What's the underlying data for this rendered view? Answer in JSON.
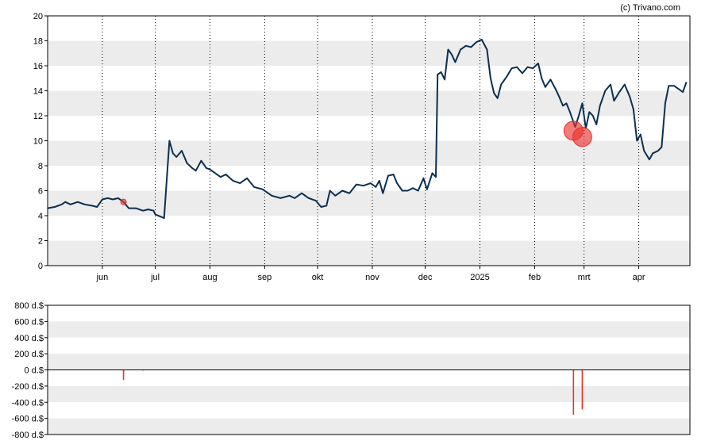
{
  "watermark": "(c) Trivano.com",
  "chart_data": [
    {
      "type": "line",
      "title": "",
      "xlabel": "",
      "ylabel": "",
      "ylim": [
        0,
        20
      ],
      "grid": true,
      "y_ticks": [
        "0",
        "2",
        "4",
        "6",
        "8",
        "10",
        "12",
        "14",
        "16",
        "18",
        "20"
      ],
      "x_ticks": [
        {
          "label": "jun",
          "date": "2024-06-01"
        },
        {
          "label": "jul",
          "date": "2024-07-01"
        },
        {
          "label": "aug",
          "date": "2024-08-01"
        },
        {
          "label": "sep",
          "date": "2024-09-01"
        },
        {
          "label": "okt",
          "date": "2024-10-01"
        },
        {
          "label": "nov",
          "date": "2024-11-01"
        },
        {
          "label": "dec",
          "date": "2024-12-01"
        },
        {
          "label": "2025",
          "date": "2025-01-01"
        },
        {
          "label": "feb",
          "date": "2025-02-01"
        },
        {
          "label": "mrt",
          "date": "2025-03-01"
        },
        {
          "label": "apr",
          "date": "2025-04-01"
        }
      ],
      "line_color": "#0b2f4f",
      "series": [
        {
          "points": [
            [
              "2024-05-01",
              4.6
            ],
            [
              "2024-05-05",
              4.7
            ],
            [
              "2024-05-09",
              4.9
            ],
            [
              "2024-05-11",
              5.1
            ],
            [
              "2024-05-14",
              4.9
            ],
            [
              "2024-05-18",
              5.1
            ],
            [
              "2024-05-22",
              4.9
            ],
            [
              "2024-05-26",
              4.8
            ],
            [
              "2024-05-29",
              4.7
            ],
            [
              "2024-06-01",
              5.3
            ],
            [
              "2024-06-04",
              5.4
            ],
            [
              "2024-06-07",
              5.3
            ],
            [
              "2024-06-10",
              5.4
            ],
            [
              "2024-06-13",
              5.1
            ],
            [
              "2024-06-16",
              4.6
            ],
            [
              "2024-06-20",
              4.6
            ],
            [
              "2024-06-24",
              4.4
            ],
            [
              "2024-06-27",
              4.5
            ],
            [
              "2024-06-30",
              4.4
            ],
            [
              "2024-07-01",
              4.1
            ],
            [
              "2024-07-06",
              3.8
            ],
            [
              "2024-07-09",
              10.0
            ],
            [
              "2024-07-11",
              9.0
            ],
            [
              "2024-07-13",
              8.7
            ],
            [
              "2024-07-16",
              9.2
            ],
            [
              "2024-07-19",
              8.2
            ],
            [
              "2024-07-22",
              7.8
            ],
            [
              "2024-07-24",
              7.6
            ],
            [
              "2024-07-27",
              8.4
            ],
            [
              "2024-07-30",
              7.8
            ],
            [
              "2024-08-01",
              7.7
            ],
            [
              "2024-08-04",
              7.4
            ],
            [
              "2024-08-07",
              7.1
            ],
            [
              "2024-08-10",
              7.3
            ],
            [
              "2024-08-14",
              6.8
            ],
            [
              "2024-08-18",
              6.6
            ],
            [
              "2024-08-22",
              7.0
            ],
            [
              "2024-08-26",
              6.3
            ],
            [
              "2024-08-31",
              6.1
            ],
            [
              "2024-09-05",
              5.6
            ],
            [
              "2024-09-10",
              5.4
            ],
            [
              "2024-09-15",
              5.6
            ],
            [
              "2024-09-18",
              5.4
            ],
            [
              "2024-09-22",
              5.8
            ],
            [
              "2024-09-26",
              5.4
            ],
            [
              "2024-09-30",
              5.2
            ],
            [
              "2024-10-03",
              4.7
            ],
            [
              "2024-10-06",
              4.8
            ],
            [
              "2024-10-08",
              6.0
            ],
            [
              "2024-10-11",
              5.6
            ],
            [
              "2024-10-15",
              6.0
            ],
            [
              "2024-10-19",
              5.8
            ],
            [
              "2024-10-23",
              6.5
            ],
            [
              "2024-10-27",
              6.4
            ],
            [
              "2024-10-31",
              6.6
            ],
            [
              "2024-11-03",
              6.3
            ],
            [
              "2024-11-05",
              6.8
            ],
            [
              "2024-11-07",
              5.8
            ],
            [
              "2024-11-10",
              7.2
            ],
            [
              "2024-11-13",
              7.3
            ],
            [
              "2024-11-15",
              6.6
            ],
            [
              "2024-11-18",
              6.0
            ],
            [
              "2024-11-21",
              6.0
            ],
            [
              "2024-11-24",
              6.2
            ],
            [
              "2024-11-27",
              6.0
            ],
            [
              "2024-11-30",
              7.0
            ],
            [
              "2024-12-02",
              6.1
            ],
            [
              "2024-12-05",
              7.4
            ],
            [
              "2024-12-07",
              7.1
            ],
            [
              "2024-12-08",
              15.3
            ],
            [
              "2024-12-10",
              15.5
            ],
            [
              "2024-12-12",
              14.9
            ],
            [
              "2024-12-14",
              17.3
            ],
            [
              "2024-12-16",
              16.9
            ],
            [
              "2024-12-18",
              16.3
            ],
            [
              "2024-12-21",
              17.3
            ],
            [
              "2024-12-24",
              17.6
            ],
            [
              "2024-12-27",
              17.5
            ],
            [
              "2024-12-30",
              17.9
            ],
            [
              "2025-01-02",
              18.1
            ],
            [
              "2025-01-05",
              17.3
            ],
            [
              "2025-01-07",
              15.0
            ],
            [
              "2025-01-09",
              13.8
            ],
            [
              "2025-01-11",
              13.4
            ],
            [
              "2025-01-13",
              14.5
            ],
            [
              "2025-01-16",
              15.1
            ],
            [
              "2025-01-19",
              15.8
            ],
            [
              "2025-01-22",
              15.9
            ],
            [
              "2025-01-25",
              15.4
            ],
            [
              "2025-01-28",
              15.9
            ],
            [
              "2025-01-31",
              15.8
            ],
            [
              "2025-02-03",
              16.2
            ],
            [
              "2025-02-05",
              15.0
            ],
            [
              "2025-02-07",
              14.3
            ],
            [
              "2025-02-10",
              14.9
            ],
            [
              "2025-02-13",
              14.1
            ],
            [
              "2025-02-15",
              13.5
            ],
            [
              "2025-02-17",
              12.8
            ],
            [
              "2025-02-19",
              13.0
            ],
            [
              "2025-02-21",
              12.3
            ],
            [
              "2025-02-24",
              11.1
            ],
            [
              "2025-02-26",
              12.0
            ],
            [
              "2025-02-28",
              13.0
            ],
            [
              "2025-03-02",
              11.0
            ],
            [
              "2025-03-04",
              12.3
            ],
            [
              "2025-03-06",
              12.0
            ],
            [
              "2025-03-08",
              11.3
            ],
            [
              "2025-03-10",
              12.8
            ],
            [
              "2025-03-13",
              14.0
            ],
            [
              "2025-03-16",
              14.5
            ],
            [
              "2025-03-18",
              13.2
            ],
            [
              "2025-03-21",
              13.9
            ],
            [
              "2025-03-24",
              14.5
            ],
            [
              "2025-03-27",
              13.5
            ],
            [
              "2025-03-29",
              12.5
            ],
            [
              "2025-03-31",
              10.0
            ],
            [
              "2025-04-02",
              10.5
            ],
            [
              "2025-04-04",
              9.2
            ],
            [
              "2025-04-07",
              8.5
            ],
            [
              "2025-04-09",
              9.0
            ],
            [
              "2025-04-12",
              9.2
            ],
            [
              "2025-04-14",
              9.5
            ],
            [
              "2025-04-16",
              13.0
            ],
            [
              "2025-04-18",
              14.4
            ],
            [
              "2025-04-21",
              14.4
            ],
            [
              "2025-04-24",
              14.1
            ],
            [
              "2025-04-26",
              13.9
            ],
            [
              "2025-04-28",
              14.7
            ]
          ]
        }
      ],
      "markers": [
        {
          "date": "2024-06-13",
          "value": 5.1,
          "size": "small",
          "color": "#e8342f"
        },
        {
          "date": "2025-02-23",
          "value": 10.8,
          "size": "large",
          "color": "#e8342f"
        },
        {
          "date": "2025-02-28",
          "value": 10.3,
          "size": "large",
          "color": "#e8342f"
        }
      ],
      "xlim": [
        "2024-05-01",
        "2025-04-30"
      ]
    },
    {
      "type": "bar",
      "title": "",
      "xlabel": "",
      "ylabel": "",
      "ylim": [
        -800,
        800
      ],
      "grid": true,
      "y_ticks": [
        "800 d.$",
        "600 d.$",
        "400 d.$",
        "200 d.$",
        "0 d.$",
        "-200 d.$",
        "-400 d.$",
        "-600 d.$",
        "-800 d.$"
      ],
      "bar_color": "#e8342f",
      "bars": [
        {
          "date": "2024-06-13",
          "value": -125
        },
        {
          "date": "2024-06-24",
          "value": -8
        },
        {
          "date": "2025-02-23",
          "value": -555
        },
        {
          "date": "2025-02-28",
          "value": -490
        }
      ],
      "xlim": [
        "2024-05-01",
        "2025-04-30"
      ]
    }
  ]
}
